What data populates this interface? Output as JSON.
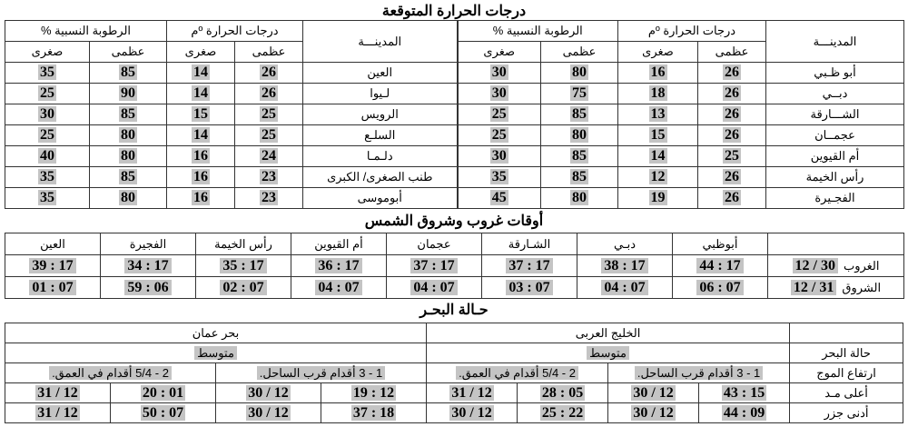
{
  "forecast": {
    "title": "درجات الحرارة المتوقعة",
    "city_header": "المدينـــة",
    "temp_header": "درجات الحرارة ºم",
    "humidity_header": "الرطوبة النسبية %",
    "max_label": "عظمى",
    "min_label": "صغرى",
    "right_rows": [
      {
        "city": "أبو ظـبي",
        "tmax": "26",
        "tmin": "16",
        "hmax": "80",
        "hmin": "30"
      },
      {
        "city": "دبــي",
        "tmax": "26",
        "tmin": "18",
        "hmax": "75",
        "hmin": "30"
      },
      {
        "city": "الشـــارقة",
        "tmax": "26",
        "tmin": "13",
        "hmax": "85",
        "hmin": "25"
      },
      {
        "city": "عجمــان",
        "tmax": "26",
        "tmin": "15",
        "hmax": "80",
        "hmin": "25"
      },
      {
        "city": "أم القيوين",
        "tmax": "25",
        "tmin": "14",
        "hmax": "85",
        "hmin": "30"
      },
      {
        "city": "رأس الخيمة",
        "tmax": "26",
        "tmin": "12",
        "hmax": "85",
        "hmin": "35"
      },
      {
        "city": "الفجـيرة",
        "tmax": "26",
        "tmin": "19",
        "hmax": "80",
        "hmin": "45"
      }
    ],
    "left_rows": [
      {
        "city": "العين",
        "tmax": "26",
        "tmin": "14",
        "hmax": "85",
        "hmin": "35"
      },
      {
        "city": "لـيوا",
        "tmax": "26",
        "tmin": "14",
        "hmax": "90",
        "hmin": "25"
      },
      {
        "city": "الرويس",
        "tmax": "25",
        "tmin": "15",
        "hmax": "85",
        "hmin": "30"
      },
      {
        "city": "السلـع",
        "tmax": "25",
        "tmin": "14",
        "hmax": "80",
        "hmin": "25"
      },
      {
        "city": "دلـمـا",
        "tmax": "24",
        "tmin": "16",
        "hmax": "80",
        "hmin": "40"
      },
      {
        "city": "طنب الصغرى/ الكبرى",
        "tmax": "23",
        "tmin": "16",
        "hmax": "85",
        "hmin": "35"
      },
      {
        "city": "أبوموسى",
        "tmax": "23",
        "tmin": "16",
        "hmax": "80",
        "hmin": "35"
      }
    ]
  },
  "sun": {
    "title": "أوقات غروب وشروق الشمس",
    "cities": [
      "أبوظبي",
      "دبـي",
      "الشـارقة",
      "عجمان",
      "أم القيوين",
      "رأس الخيمة",
      "الفجيرة",
      "العين"
    ],
    "sunset": {
      "label": "الغروب",
      "date": "30 / 12",
      "times": [
        "17 : 44",
        "17 : 38",
        "17 : 37",
        "17 : 37",
        "17 : 36",
        "17 : 35",
        "17 : 34",
        "17 : 39"
      ]
    },
    "sunrise": {
      "label": "الشروق",
      "date": "31 / 12",
      "times": [
        "07 : 06",
        "07 : 04",
        "07 : 03",
        "07 : 04",
        "07 : 04",
        "07 : 02",
        "06 : 59",
        "07 : 01"
      ]
    }
  },
  "sea": {
    "title": "حـالة البحـر",
    "gulf": {
      "name": "الخليج العربى",
      "state": "متوسط",
      "wave_near": "1 - 3 أقدام قرب الساحل.",
      "wave_deep": "2 - 5/4 أقدام في العمق.",
      "high": [
        "15 : 43",
        "12 / 30",
        "05 : 28",
        "12 / 31"
      ],
      "low": [
        "09 : 44",
        "12 / 30",
        "22 : 25",
        "12 / 30"
      ]
    },
    "oman": {
      "name": "بحر عمان",
      "state": "متوسط",
      "wave_near": "1 - 3 أقدام قرب الساحل.",
      "wave_deep": "2 - 5/4 أقدام في العمق.",
      "high": [
        "12 : 19",
        "12 / 30",
        "01 : 20",
        "12 / 31"
      ],
      "low": [
        "18 : 37",
        "12 / 30",
        "07 : 50",
        "12 / 31"
      ]
    },
    "labels": {
      "state": "حالة البحر",
      "wave": "ارتفاع الموج",
      "high": "أعلى مـد",
      "low": "أدنى جزر"
    }
  }
}
